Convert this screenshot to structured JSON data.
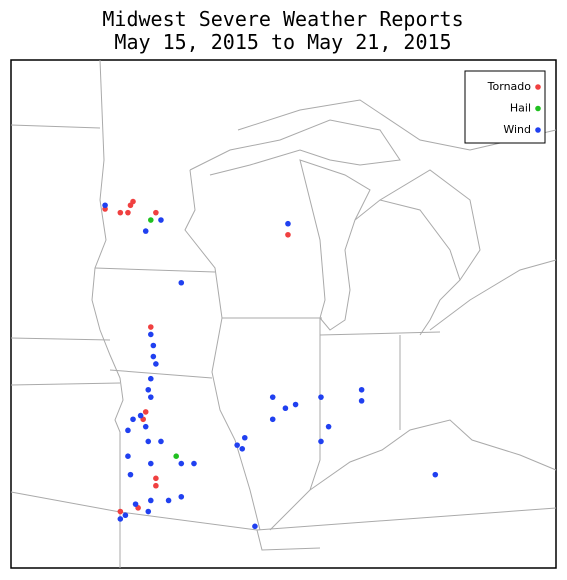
{
  "title": {
    "line1": "Midwest Severe Weather Reports",
    "line2": "May 15, 2015 to May 21, 2015"
  },
  "legend": [
    {
      "label": "Tornado",
      "color": "#f04040",
      "points": [
        [
          -96.4,
          45.1
        ],
        [
          -95.8,
          45.0
        ],
        [
          -95.5,
          45.0
        ],
        [
          -95.4,
          45.2
        ],
        [
          -95.3,
          45.3
        ],
        [
          -94.4,
          45.0
        ],
        [
          -89.2,
          44.4
        ],
        [
          -94.6,
          41.9
        ],
        [
          -94.8,
          39.6
        ],
        [
          -94.9,
          39.4
        ],
        [
          -94.4,
          37.8
        ],
        [
          -94.4,
          37.6
        ],
        [
          -95.1,
          37.0
        ],
        [
          -95.8,
          36.9
        ]
      ]
    },
    {
      "label": "Hail",
      "color": "#20c020",
      "points": [
        [
          -94.6,
          44.8
        ],
        [
          -93.6,
          38.4
        ]
      ]
    },
    {
      "label": "Wind",
      "color": "#2040f0",
      "points": [
        [
          -96.4,
          45.2
        ],
        [
          -94.2,
          44.8
        ],
        [
          -94.8,
          44.5
        ],
        [
          -89.2,
          44.7
        ],
        [
          -93.4,
          43.1
        ],
        [
          -94.6,
          41.7
        ],
        [
          -94.5,
          41.4
        ],
        [
          -94.5,
          41.1
        ],
        [
          -94.4,
          40.9
        ],
        [
          -94.6,
          40.5
        ],
        [
          -94.7,
          40.2
        ],
        [
          -94.6,
          40.0
        ],
        [
          -95.0,
          39.5
        ],
        [
          -95.3,
          39.4
        ],
        [
          -94.8,
          39.2
        ],
        [
          -95.5,
          39.1
        ],
        [
          -94.7,
          38.8
        ],
        [
          -94.2,
          38.8
        ],
        [
          -94.6,
          38.2
        ],
        [
          -95.5,
          38.4
        ],
        [
          -93.4,
          38.2
        ],
        [
          -92.9,
          38.2
        ],
        [
          -95.4,
          37.9
        ],
        [
          -93.4,
          37.3
        ],
        [
          -93.9,
          37.2
        ],
        [
          -94.6,
          37.2
        ],
        [
          -95.2,
          37.1
        ],
        [
          -94.7,
          36.9
        ],
        [
          -95.6,
          36.8
        ],
        [
          -95.8,
          36.7
        ],
        [
          -89.8,
          40.0
        ],
        [
          -89.8,
          39.4
        ],
        [
          -89.3,
          39.7
        ],
        [
          -88.9,
          39.8
        ],
        [
          -87.9,
          40.0
        ],
        [
          -87.6,
          39.2
        ],
        [
          -87.9,
          38.8
        ],
        [
          -90.9,
          38.9
        ],
        [
          -91.0,
          38.6
        ],
        [
          -91.2,
          38.7
        ],
        [
          -86.3,
          40.2
        ],
        [
          -86.3,
          39.9
        ],
        [
          -83.4,
          37.9
        ],
        [
          -90.5,
          36.5
        ]
      ]
    }
  ]
}
